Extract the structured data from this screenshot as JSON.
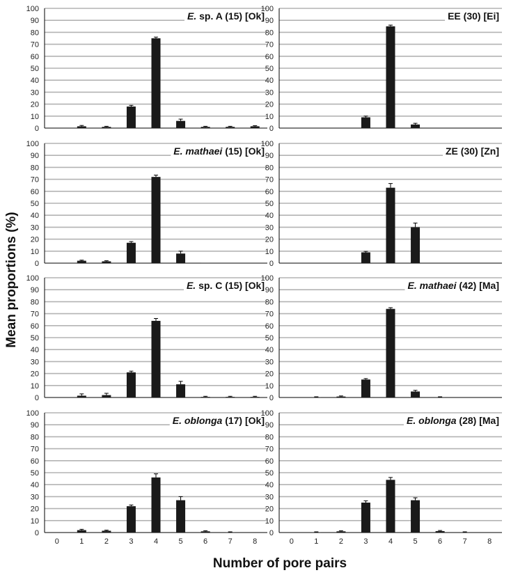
{
  "figure": {
    "ylabel": "Mean proportions  (%)",
    "xlabel": "Number of pore pairs",
    "ylim": [
      0,
      100
    ],
    "yticks": [
      0,
      10,
      20,
      30,
      40,
      50,
      60,
      70,
      80,
      90,
      100
    ],
    "categories": [
      "0",
      "1",
      "2",
      "3",
      "4",
      "5",
      "6",
      "7",
      "8"
    ]
  },
  "chart_data": [
    {
      "type": "bar",
      "title_italic": "E.",
      "title_rest": " sp. A (15) [Ok]",
      "categories": [
        "0",
        "1",
        "2",
        "3",
        "4",
        "5",
        "6",
        "7",
        "8"
      ],
      "values": [
        0,
        1.5,
        1,
        18,
        75,
        6,
        1,
        1,
        1.5
      ],
      "errors": [
        0,
        0.7,
        0.5,
        1,
        1,
        1.5,
        0.5,
        0.5,
        0.5
      ],
      "ylim": [
        0,
        100
      ]
    },
    {
      "type": "bar",
      "title_italic": "",
      "title_rest": "EE (30) [Ei]",
      "categories": [
        "0",
        "1",
        "2",
        "3",
        "4",
        "5",
        "6",
        "7",
        "8"
      ],
      "values": [
        0,
        0,
        0,
        9,
        85,
        3,
        0,
        0,
        0
      ],
      "errors": [
        0,
        0,
        0,
        1,
        1,
        1,
        0,
        0,
        0
      ],
      "ylim": [
        0,
        100
      ]
    },
    {
      "type": "bar",
      "title_italic": "E. mathaei",
      "title_rest": " (15) [Ok]",
      "categories": [
        "0",
        "1",
        "2",
        "3",
        "4",
        "5",
        "6",
        "7",
        "8"
      ],
      "values": [
        0,
        2,
        1.5,
        17,
        72,
        8,
        0.3,
        0,
        0
      ],
      "errors": [
        0,
        0.5,
        0.5,
        1,
        1.5,
        2,
        0,
        0,
        0
      ],
      "ylim": [
        0,
        100
      ]
    },
    {
      "type": "bar",
      "title_italic": "",
      "title_rest": "ZE (30) [Zn]",
      "categories": [
        "0",
        "1",
        "2",
        "3",
        "4",
        "5",
        "6",
        "7",
        "8"
      ],
      "values": [
        0,
        0,
        0,
        9,
        63,
        30,
        0,
        0,
        0
      ],
      "errors": [
        0,
        0,
        0,
        0.8,
        3.5,
        3.5,
        0,
        0,
        0
      ],
      "ylim": [
        0,
        100
      ]
    },
    {
      "type": "bar",
      "title_italic": "E.",
      "title_rest": " sp. C (15) [Ok]",
      "categories": [
        "0",
        "1",
        "2",
        "3",
        "4",
        "5",
        "6",
        "7",
        "8"
      ],
      "values": [
        0,
        1.5,
        2,
        21,
        64,
        11,
        0.5,
        0.5,
        0.5
      ],
      "errors": [
        0,
        1.5,
        1.5,
        1,
        2,
        2.5,
        0.5,
        0.5,
        0.5
      ],
      "ylim": [
        0,
        100
      ]
    },
    {
      "type": "bar",
      "title_italic": "E. mathaei",
      "title_rest": " (42) [Ma]",
      "categories": [
        "0",
        "1",
        "2",
        "3",
        "4",
        "5",
        "6",
        "7",
        "8"
      ],
      "values": [
        0,
        0.3,
        0.8,
        15,
        74,
        5,
        0.3,
        0,
        0
      ],
      "errors": [
        0,
        0.3,
        0.5,
        0.8,
        1,
        1,
        0.3,
        0,
        0
      ],
      "ylim": [
        0,
        100
      ]
    },
    {
      "type": "bar",
      "title_italic": "E. oblonga",
      "title_rest": " (17) [Ok]",
      "categories": [
        "0",
        "1",
        "2",
        "3",
        "4",
        "5",
        "6",
        "7",
        "8"
      ],
      "values": [
        0,
        2,
        1.5,
        22,
        46,
        27,
        1,
        0.3,
        0
      ],
      "errors": [
        0,
        0.7,
        0.5,
        1,
        3,
        3,
        0.5,
        0.3,
        0
      ],
      "ylim": [
        0,
        100
      ]
    },
    {
      "type": "bar",
      "title_italic": "E. oblonga",
      "title_rest": " (28) [Ma]",
      "categories": [
        "0",
        "1",
        "2",
        "3",
        "4",
        "5",
        "6",
        "7",
        "8"
      ],
      "values": [
        0,
        0.3,
        1,
        25,
        44,
        27,
        1.2,
        0.3,
        0
      ],
      "errors": [
        0,
        0.3,
        0.5,
        1.5,
        2,
        2,
        0.5,
        0.3,
        0
      ],
      "ylim": [
        0,
        100
      ]
    }
  ]
}
